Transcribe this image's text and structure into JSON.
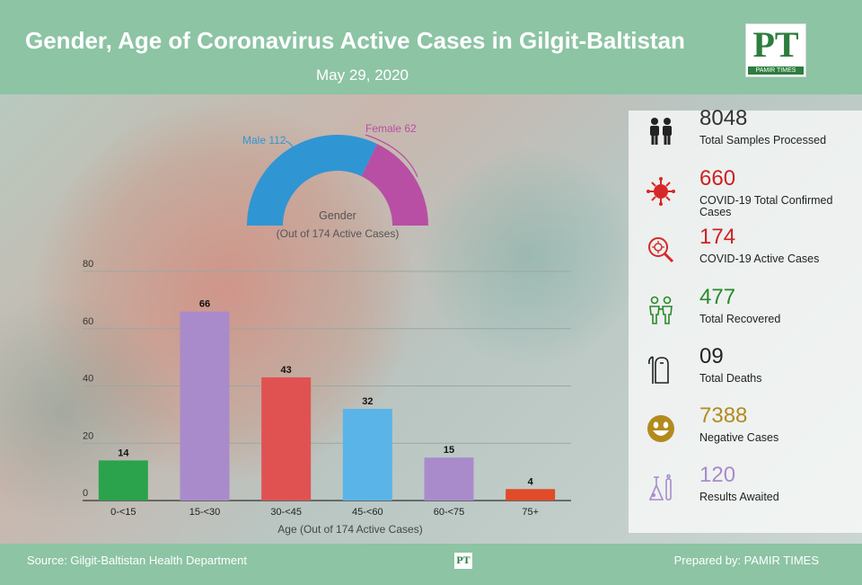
{
  "header": {
    "title": "Gender, Age of Coronavirus Active Cases in Gilgit-Baltistan",
    "date": "May 29, 2020",
    "logo_text": "PT",
    "logo_sub": "PAMIR TIMES"
  },
  "chart_data": [
    {
      "type": "pie",
      "style": "semi-donut",
      "title": "Gender",
      "subtitle": "(Out of 174 Active Cases)",
      "slices": [
        {
          "label": "Male 112",
          "value": 112,
          "color": "#2f96d3"
        },
        {
          "label": "Female 62",
          "value": 62,
          "color": "#b84fa4"
        }
      ]
    },
    {
      "type": "bar",
      "xlabel": "Age (Out of 174 Active Cases)",
      "ylabel": "",
      "ylim": [
        0,
        80
      ],
      "yticks": [
        0,
        20,
        40,
        60,
        80
      ],
      "grid": true,
      "categories": [
        "0-<15",
        "15-<30",
        "30-<45",
        "45-<60",
        "60-<75",
        "75+"
      ],
      "values": [
        14,
        66,
        43,
        32,
        15,
        4
      ],
      "colors": [
        "#2ba24c",
        "#a98bcb",
        "#e05252",
        "#5ab4e8",
        "#a98bcb",
        "#e04b2a"
      ]
    }
  ],
  "stats": [
    {
      "value": "8048",
      "label": "Total Samples Processed",
      "color": "#333333",
      "icon": "people-icon"
    },
    {
      "value": "660",
      "label": "COVID-19 Total Confirmed Cases",
      "color": "#cc2222",
      "icon": "virus-icon"
    },
    {
      "value": "174",
      "label": "COVID-19 Active Cases",
      "color": "#cc2222",
      "icon": "virus-search-icon"
    },
    {
      "value": "477",
      "label": "Total Recovered",
      "color": "#2a8a2a",
      "icon": "recovered-people-icon"
    },
    {
      "value": "09",
      "label": "Total Deaths",
      "color": "#222222",
      "icon": "grim-reaper-icon"
    },
    {
      "value": "7388",
      "label": "Negative Cases",
      "color": "#b38a1d",
      "icon": "smiley-icon"
    },
    {
      "value": "120",
      "label": "Results Awaited",
      "color": "#a98bcb",
      "icon": "test-flask-icon"
    }
  ],
  "footer": {
    "source": "Source: Gilgit-Baltistan Health Department",
    "prepared": "Prepared by: PAMIR TIMES",
    "mini_logo": "PT"
  }
}
